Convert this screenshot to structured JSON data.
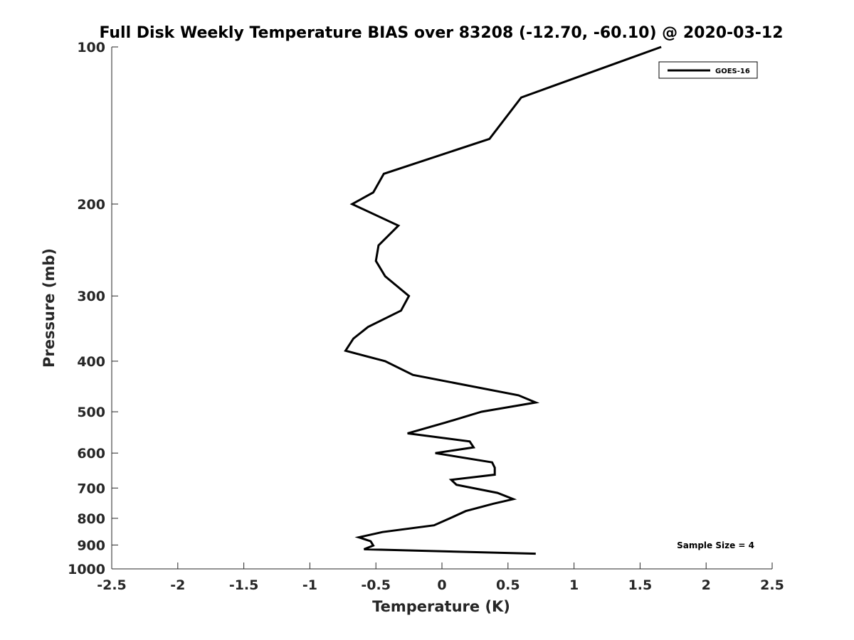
{
  "chart_data": {
    "type": "line",
    "title": "Full Disk Weekly Temperature BIAS over 83208 (-12.70, -60.10) @ 2020-03-12",
    "xlabel": "Temperature (K)",
    "ylabel": "Pressure (mb)",
    "xlim": [
      -2.5,
      2.5
    ],
    "ylim": [
      1000,
      100
    ],
    "y_scale": "log",
    "y_reversed": true,
    "grid": false,
    "legend_position": "top-right",
    "x_ticks": [
      -2.5,
      -2,
      -1.5,
      -1,
      -0.5,
      0,
      0.5,
      1,
      1.5,
      2,
      2.5
    ],
    "x_tick_labels": [
      "-2.5",
      "-2",
      "-1.5",
      "-1",
      "-0.5",
      "0",
      "0.5",
      "1",
      "1.5",
      "2",
      "2.5"
    ],
    "y_ticks": [
      100,
      200,
      300,
      400,
      500,
      600,
      700,
      800,
      900,
      1000
    ],
    "y_tick_labels": [
      "100",
      "200",
      "300",
      "400",
      "500",
      "600",
      "700",
      "800",
      "900",
      "1000"
    ],
    "series": [
      {
        "name": "GOES-16",
        "color": "#000000",
        "points": [
          {
            "x": 1.66,
            "p": 100
          },
          {
            "x": 0.6,
            "p": 125
          },
          {
            "x": 0.36,
            "p": 150
          },
          {
            "x": -0.44,
            "p": 175
          },
          {
            "x": -0.52,
            "p": 190
          },
          {
            "x": -0.68,
            "p": 200
          },
          {
            "x": -0.33,
            "p": 220
          },
          {
            "x": -0.48,
            "p": 240
          },
          {
            "x": -0.5,
            "p": 257
          },
          {
            "x": -0.43,
            "p": 275
          },
          {
            "x": -0.25,
            "p": 300
          },
          {
            "x": -0.31,
            "p": 320
          },
          {
            "x": -0.56,
            "p": 344
          },
          {
            "x": -0.67,
            "p": 362
          },
          {
            "x": -0.73,
            "p": 382
          },
          {
            "x": -0.43,
            "p": 400
          },
          {
            "x": -0.22,
            "p": 425
          },
          {
            "x": 0.58,
            "p": 465
          },
          {
            "x": 0.71,
            "p": 480
          },
          {
            "x": 0.3,
            "p": 500
          },
          {
            "x": 0.02,
            "p": 525
          },
          {
            "x": -0.26,
            "p": 550
          },
          {
            "x": 0.21,
            "p": 570
          },
          {
            "x": 0.24,
            "p": 585
          },
          {
            "x": -0.05,
            "p": 600
          },
          {
            "x": 0.38,
            "p": 625
          },
          {
            "x": 0.4,
            "p": 640
          },
          {
            "x": 0.4,
            "p": 660
          },
          {
            "x": 0.07,
            "p": 675
          },
          {
            "x": 0.11,
            "p": 690
          },
          {
            "x": 0.42,
            "p": 715
          },
          {
            "x": 0.54,
            "p": 735
          },
          {
            "x": 0.39,
            "p": 750
          },
          {
            "x": 0.18,
            "p": 775
          },
          {
            "x": 0.06,
            "p": 800
          },
          {
            "x": -0.06,
            "p": 825
          },
          {
            "x": -0.45,
            "p": 850
          },
          {
            "x": -0.63,
            "p": 870
          },
          {
            "x": -0.54,
            "p": 885
          },
          {
            "x": -0.52,
            "p": 902
          },
          {
            "x": -0.59,
            "p": 917
          },
          {
            "x": 0.71,
            "p": 935
          }
        ]
      }
    ],
    "annotations": [
      {
        "text": "Sample Size = 4",
        "position": "bottom-right"
      }
    ]
  }
}
